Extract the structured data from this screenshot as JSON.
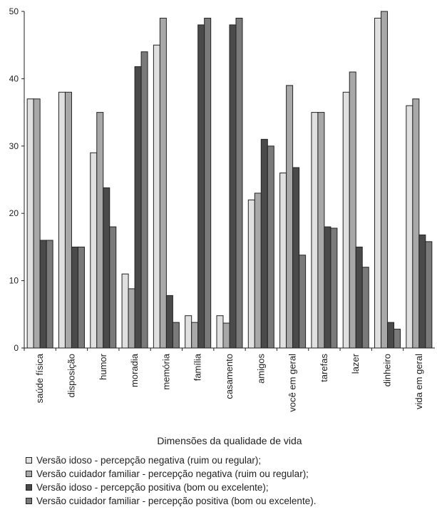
{
  "chart_data": {
    "type": "bar",
    "title": "",
    "xlabel": "Dimensões da qualidade de vida",
    "ylabel": "",
    "ylim": [
      0,
      50
    ],
    "yticks": [
      0,
      10,
      20,
      30,
      40,
      50
    ],
    "grid": false,
    "legend_position": "bottom",
    "categories": [
      "saúde física",
      "disposição",
      "humor",
      "moradia",
      "memória",
      "família",
      "casamento",
      "amigos",
      "você em geral",
      "tarefas",
      "lazer",
      "dinheiro",
      "vida em geral"
    ],
    "series": [
      {
        "name": "Versão idoso - percepção negativa (ruim ou regular);",
        "color": "#e0e0e0",
        "values": [
          37,
          38,
          29,
          11,
          45,
          4.8,
          4.8,
          22,
          26,
          35,
          38,
          49,
          36
        ]
      },
      {
        "name": "Versão cuidador familiar - percepção negativa (ruim ou regular);",
        "color": "#a8a8a8",
        "values": [
          37,
          38,
          35,
          8.8,
          49,
          3.8,
          3.7,
          23,
          39,
          35,
          41,
          50,
          37
        ]
      },
      {
        "name": "Versão idoso - percepção positiva (bom ou excelente);",
        "color": "#4a4a4a",
        "values": [
          16,
          15,
          23.8,
          41.8,
          7.8,
          48,
          48,
          31,
          26.8,
          18,
          15,
          3.8,
          16.8
        ]
      },
      {
        "name": "Versão cuidador familiar - percepção positiva (bom ou excelente).",
        "color": "#7a7a7a",
        "values": [
          16,
          15,
          18,
          44,
          3.8,
          49,
          49,
          30,
          13.8,
          17.8,
          12,
          2.8,
          15.8
        ]
      }
    ]
  }
}
